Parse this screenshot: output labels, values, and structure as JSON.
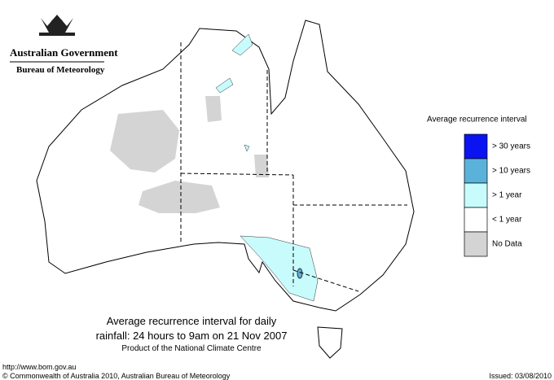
{
  "header": {
    "government": "Australian Government",
    "agency": "Bureau of Meteorology"
  },
  "map": {
    "title_line1": "Average recurrence interval for daily",
    "title_line2": "rainfall: 24 hours to 9am on 21 Nov 2007",
    "subtitle": "Product of the National Climate Centre"
  },
  "legend": {
    "title": "Average recurrence interval",
    "items": [
      {
        "label": "> 30 years",
        "color": "#0a14f0"
      },
      {
        "label": "> 10 years",
        "color": "#5ab2da"
      },
      {
        "label": "> 1 year",
        "color": "#c8fcfc"
      },
      {
        "label": "< 1 year",
        "color": "#ffffff"
      },
      {
        "label": "No Data",
        "color": "#d4d4d4"
      }
    ]
  },
  "footer": {
    "url": "http://www.bom.gov.au",
    "copyright": "© Commonwealth of Australia 2010, Australian Bureau of Meteorology",
    "issued": "Issued: 03/08/2010"
  }
}
